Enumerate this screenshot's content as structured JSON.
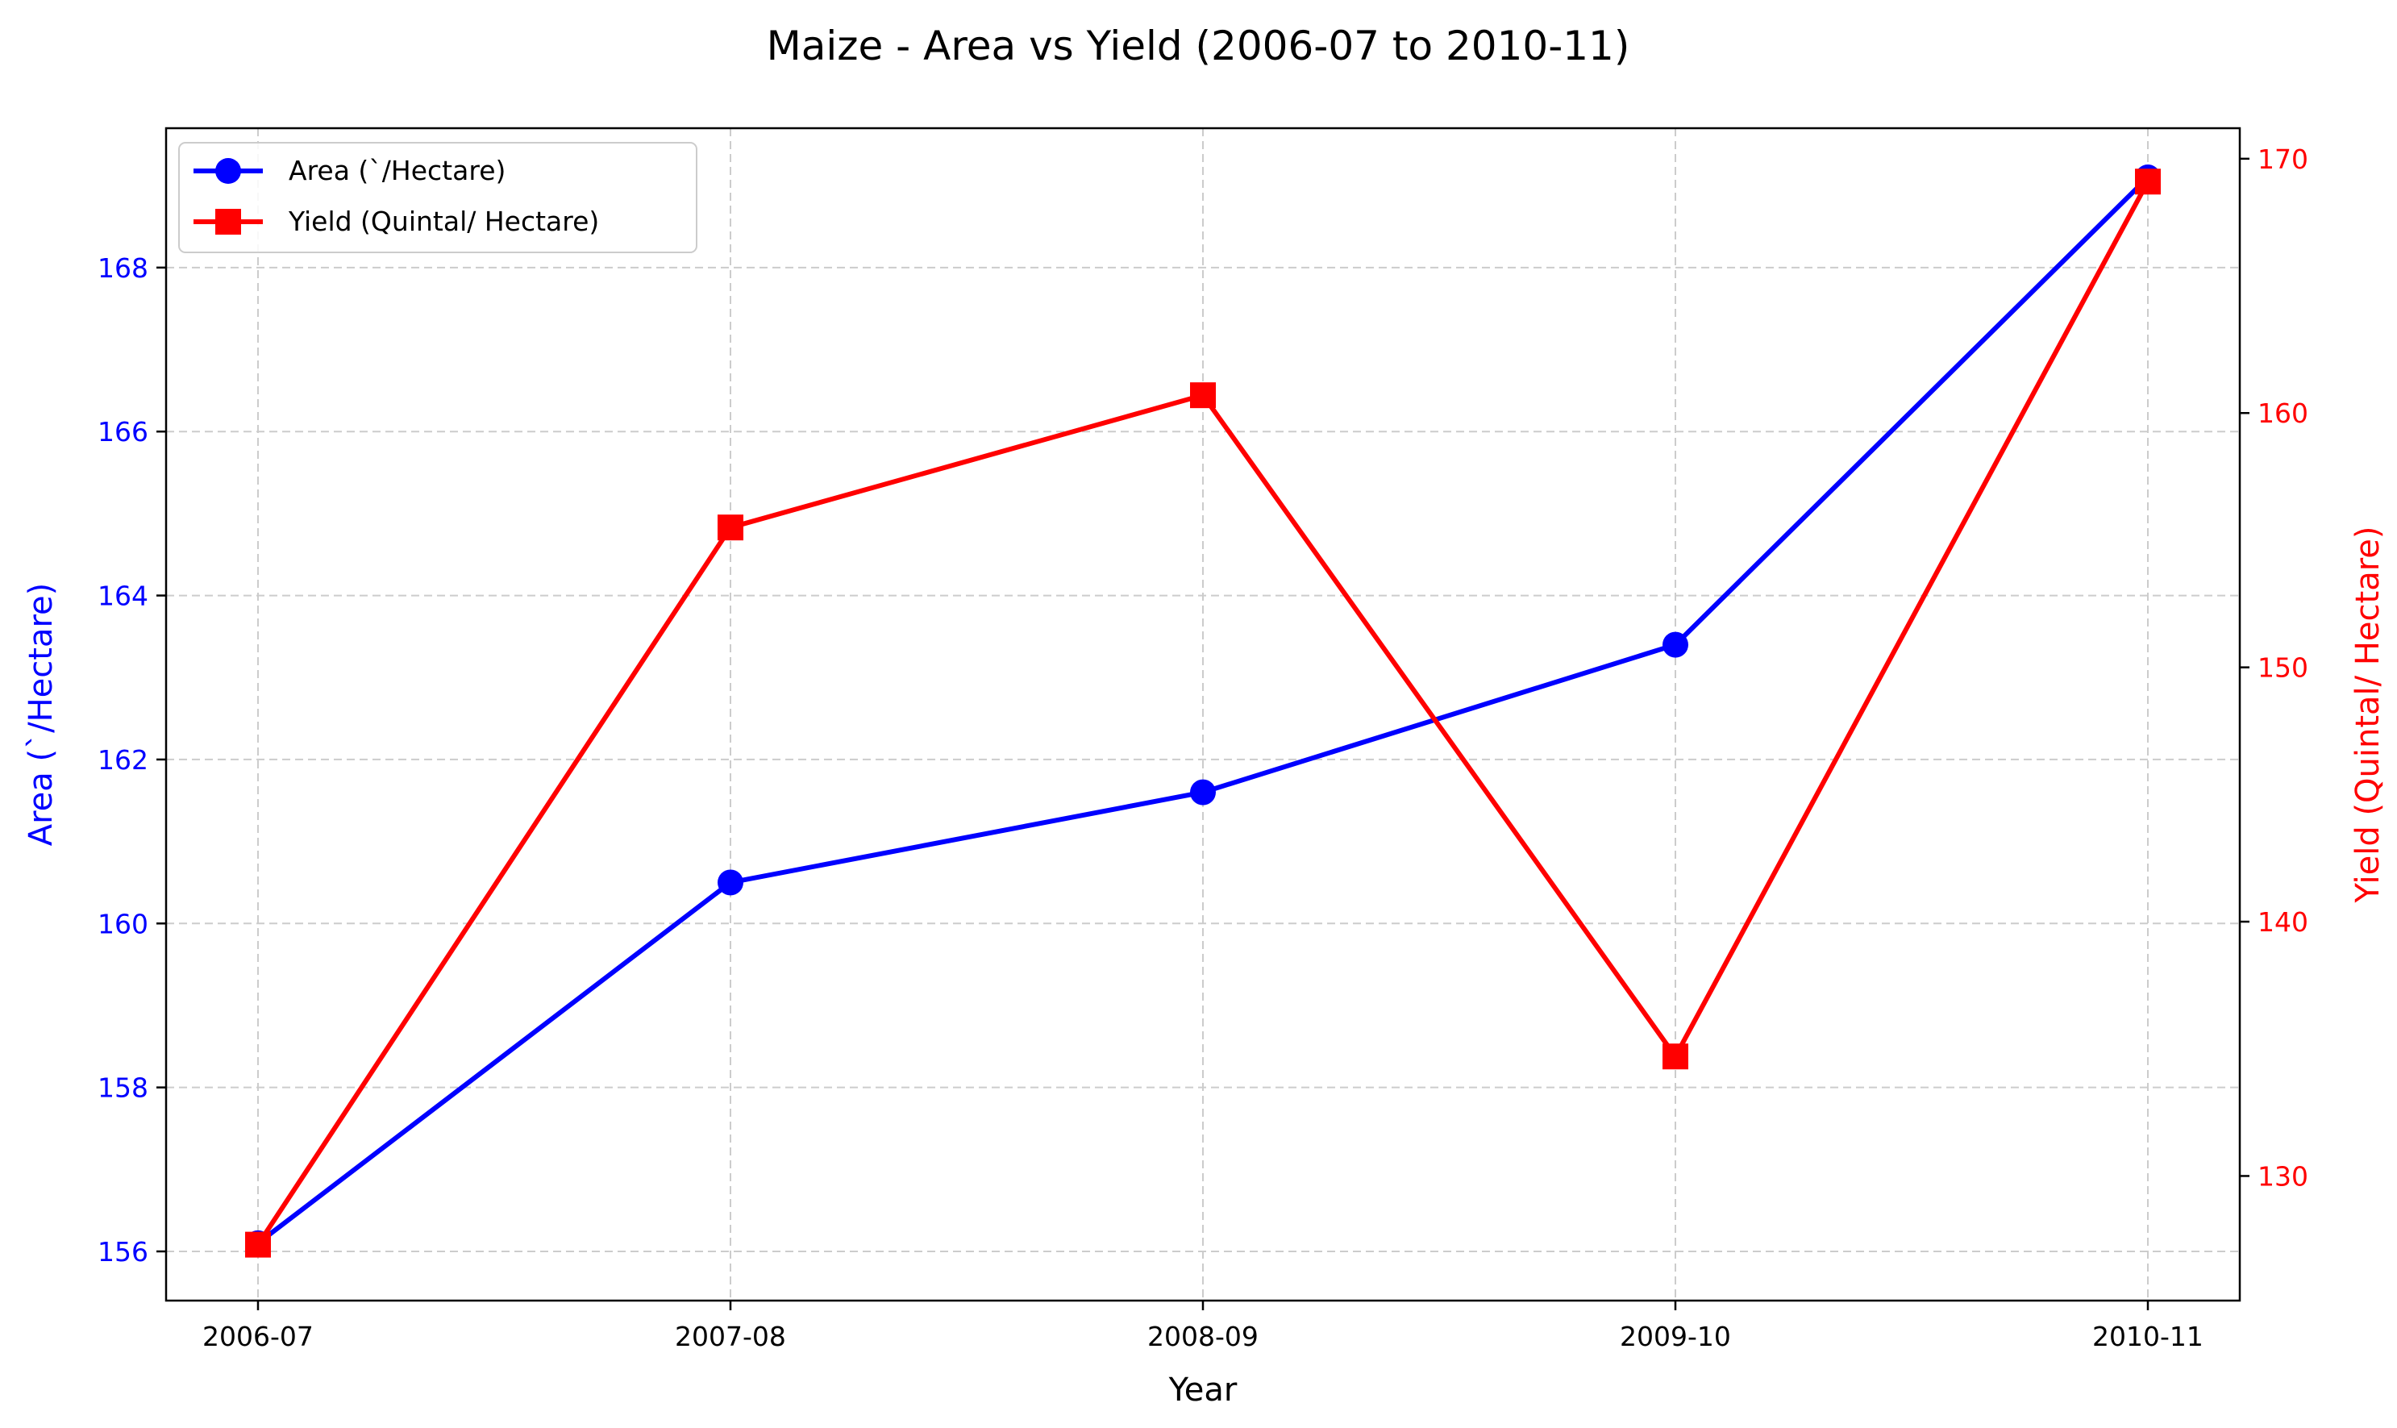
{
  "chart_data": {
    "type": "line",
    "title": "Maize - Area vs Yield (2006-07 to 2010-11)",
    "xlabel": "Year",
    "categories": [
      "2006-07",
      "2007-08",
      "2008-09",
      "2009-10",
      "2010-11"
    ],
    "left_axis": {
      "label": "Area (`/Hectare)",
      "color": "#0000ff",
      "ylim": [
        155.4,
        169.7
      ],
      "ticks": [
        156,
        158,
        160,
        162,
        164,
        166,
        168
      ],
      "tick_labels": [
        "156",
        "158",
        "160",
        "162",
        "164",
        "166",
        "168"
      ]
    },
    "right_axis": {
      "label": "Yield (Quintal/ Hectare)",
      "color": "#ff0000",
      "ylim": [
        125.1,
        171.2
      ],
      "ticks": [
        130,
        140,
        150,
        160,
        170
      ],
      "tick_labels": [
        "130",
        "140",
        "150",
        "160",
        "170"
      ]
    },
    "series": [
      {
        "name": "Area (`/Hectare)",
        "axis": "left",
        "color": "#0000ff",
        "marker": "circle",
        "values": [
          156.1,
          160.5,
          161.6,
          163.4,
          169.1
        ]
      },
      {
        "name": "Yield (Quintal/ Hectare)",
        "axis": "right",
        "color": "#ff0000",
        "marker": "square",
        "values": [
          127.3,
          155.5,
          160.7,
          134.7,
          169.1
        ]
      }
    ],
    "grid": true,
    "legend_position": "top-left"
  }
}
